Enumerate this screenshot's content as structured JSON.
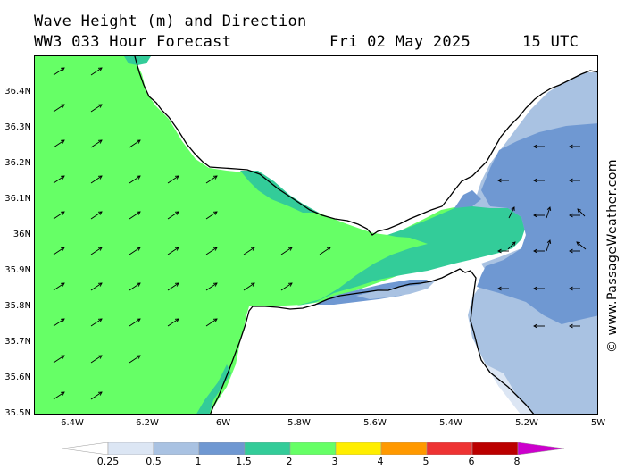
{
  "header": {
    "title": "Wave Height (m) and Direction",
    "forecast": "WW3 033 Hour Forecast",
    "date": "Fri 02 May 2025",
    "time": "15 UTC"
  },
  "axes": {
    "lat_labels": [
      "36.4N",
      "36.3N",
      "36.2N",
      "36.1N",
      "36N",
      "35.9N",
      "35.8N",
      "35.7N",
      "35.6N",
      "35.5N"
    ],
    "lon_labels": [
      "6.4W",
      "6.2W",
      "6W",
      "5.8W",
      "5.6W",
      "5.4W",
      "5.2W",
      "5W"
    ]
  },
  "credit": "© www.PassageWeather.com",
  "legend": {
    "labels": [
      "0.25",
      "0.5",
      "1",
      "1.5",
      "2",
      "3",
      "4",
      "5",
      "6",
      "8"
    ],
    "colors": [
      "#ffffff",
      "#dce6f4",
      "#a9c2e2",
      "#6f98d2",
      "#33cc99",
      "#66ff66",
      "#ffee00",
      "#ff9900",
      "#ee3333",
      "#bb0000",
      "#cc00cc"
    ]
  },
  "map_colors": {
    "land": "#ffffff",
    "wave_2_3": "#66ff66",
    "wave_1_5_2": "#33cc99",
    "wave_1_1_5": "#6f98d2",
    "wave_0_5_1": "#a9c2e2",
    "wave_0_25_0_5": "#dce6f4",
    "coast": "#000000"
  },
  "arrows": {
    "west_grid": "northeast",
    "east_grid": "west"
  }
}
